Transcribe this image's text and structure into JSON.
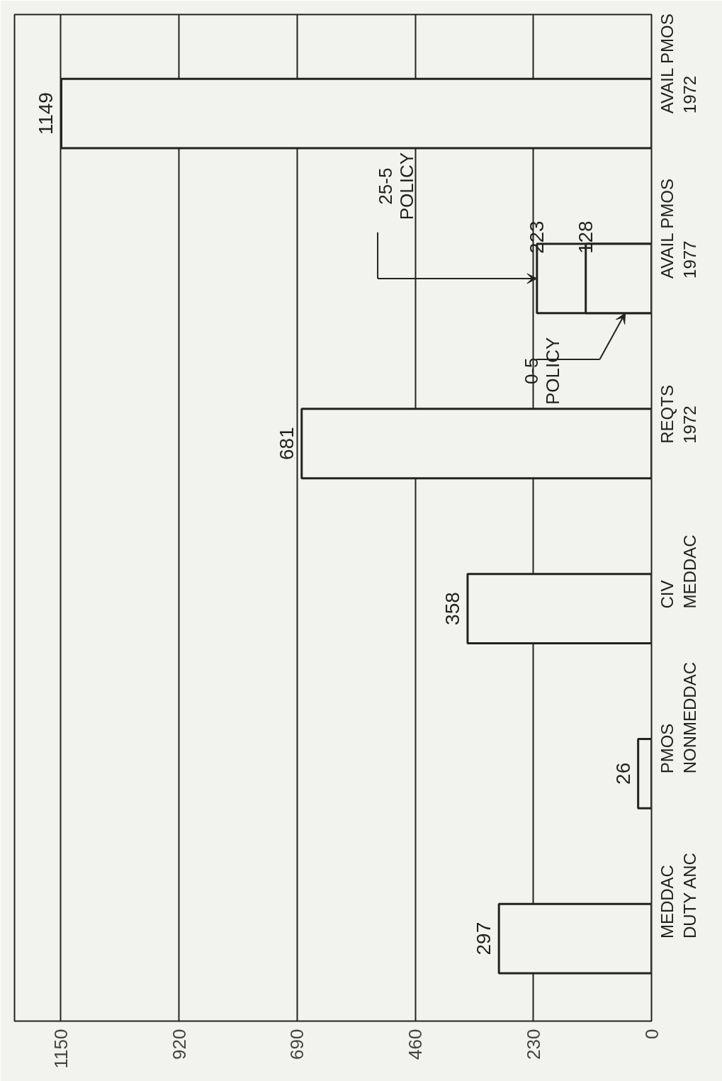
{
  "chart_data": {
    "type": "bar",
    "orientation": "horizontal",
    "categories": [
      "AVAIL PMOS\n1972",
      "AVAIL PMOS\n1977",
      "REQTS\n1972",
      "CIV\nMEDDAC",
      "PMOS\nNONMEDDAC",
      "MEDDAC\nDUTY ANC"
    ],
    "series": [
      {
        "color": "#222222",
        "values": [
          1149,
          223,
          681,
          358,
          26,
          297
        ],
        "value_labels": [
          "1149",
          "223",
          "681",
          "358",
          "26",
          "297"
        ]
      },
      {
        "color": "#222222",
        "values": [
          null,
          128,
          null,
          null,
          null,
          null
        ],
        "value_labels": [
          null,
          "128",
          null,
          null,
          null,
          null
        ]
      }
    ],
    "xlim": [
      1240,
      0
    ],
    "xticks": [
      0,
      230,
      460,
      690,
      920,
      1150
    ],
    "grid": "x",
    "annotations": [
      "25-5\nPOLICY",
      "0-5\nPOLICY"
    ]
  }
}
